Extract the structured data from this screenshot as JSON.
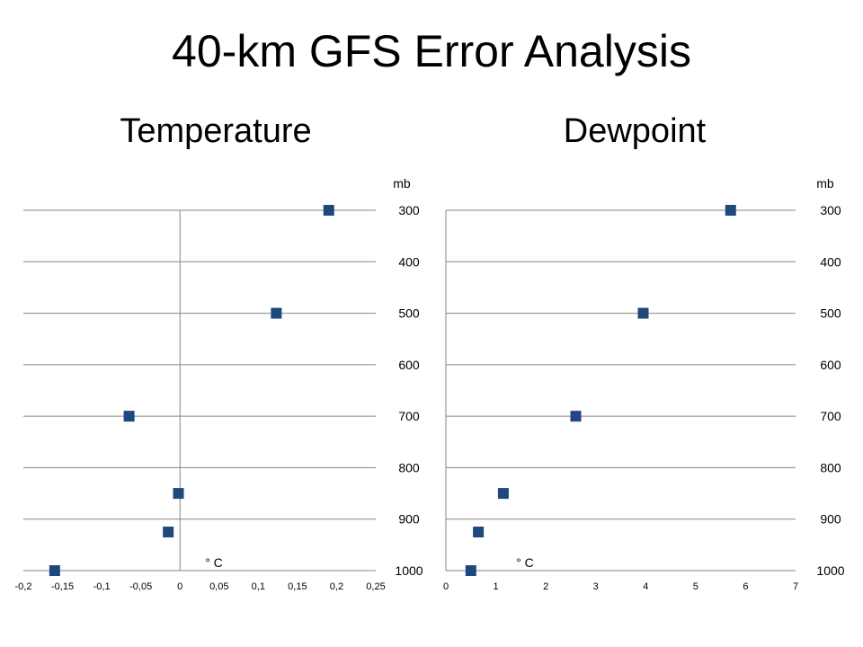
{
  "title": "40-km GFS Error Analysis",
  "chart_data": [
    {
      "type": "scatter",
      "title": "Temperature",
      "xlabel": "° C",
      "ylabel": "mb",
      "x_ticks": [
        "-0,2",
        "-0,15",
        "-0,1",
        "-0,05",
        "0",
        "0,05",
        "0,1",
        "0,15",
        "0,2",
        "0,25"
      ],
      "xlim": [
        -0.2,
        0.25
      ],
      "y_ticks": [
        "300",
        "400",
        "500",
        "600",
        "700",
        "800",
        "900",
        "1000"
      ],
      "ylim": [
        300,
        1000
      ],
      "y_reversed": true,
      "grid": "horizontal",
      "marker_color": "#1F497D",
      "points": [
        {
          "x": 0.19,
          "y": 300
        },
        {
          "x": 0.123,
          "y": 500
        },
        {
          "x": -0.065,
          "y": 700
        },
        {
          "x": -0.002,
          "y": 850
        },
        {
          "x": -0.015,
          "y": 925
        },
        {
          "x": -0.16,
          "y": 1000
        }
      ]
    },
    {
      "type": "scatter",
      "title": "Dewpoint",
      "xlabel": "° C",
      "ylabel": "mb",
      "x_ticks": [
        "0",
        "1",
        "2",
        "3",
        "4",
        "5",
        "6",
        "7"
      ],
      "xlim": [
        0,
        7
      ],
      "y_ticks": [
        "300",
        "400",
        "500",
        "600",
        "700",
        "800",
        "900",
        "1000"
      ],
      "ylim": [
        300,
        1000
      ],
      "y_reversed": true,
      "grid": "horizontal",
      "marker_color": "#1F497D",
      "points": [
        {
          "x": 5.7,
          "y": 300
        },
        {
          "x": 3.95,
          "y": 500
        },
        {
          "x": 2.6,
          "y": 700
        },
        {
          "x": 1.15,
          "y": 850
        },
        {
          "x": 0.65,
          "y": 925
        },
        {
          "x": 0.5,
          "y": 1000
        }
      ]
    }
  ]
}
